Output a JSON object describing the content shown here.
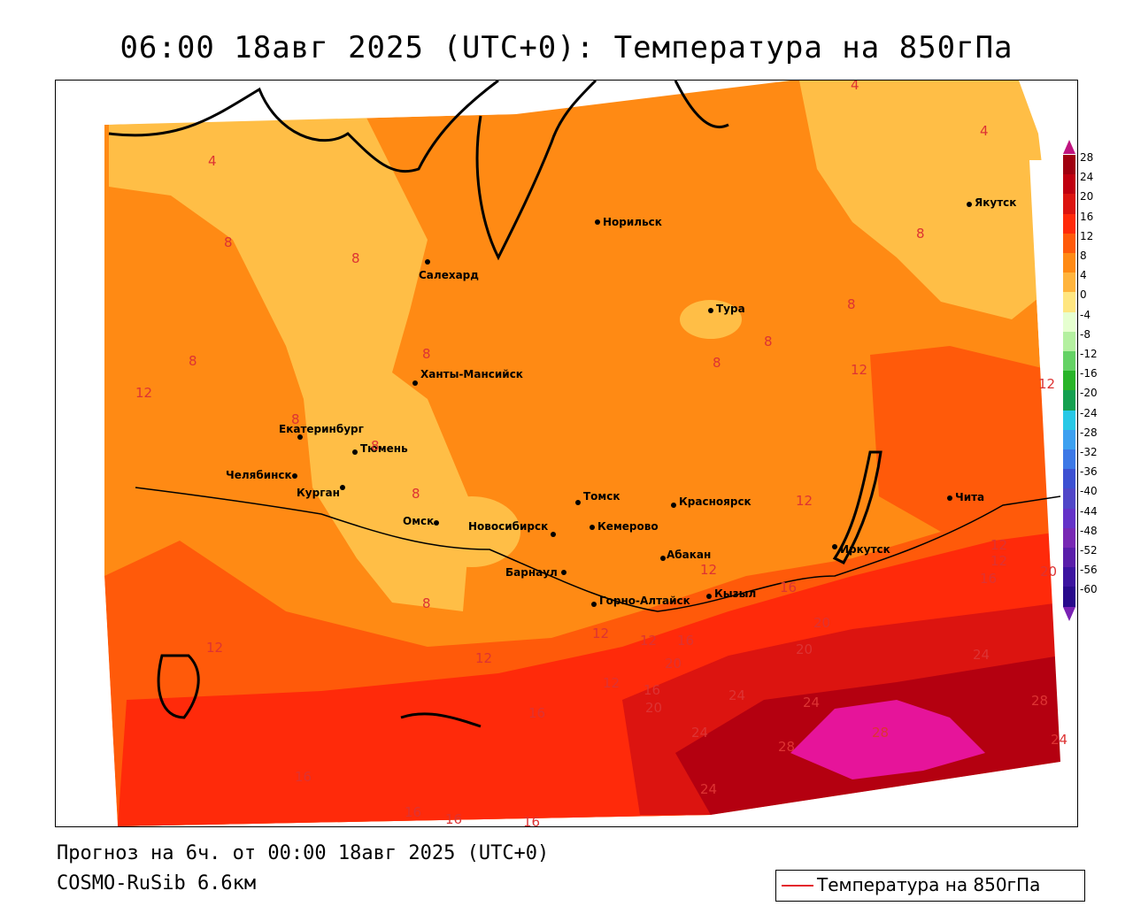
{
  "header": {
    "title": "06:00 18авг 2025 (UTC+0): Температура на 850гПа"
  },
  "footer": {
    "forecast": "Прогноз на 6ч. от 00:00 18авг 2025 (UTC+0)",
    "model": "COSMO-RuSib 6.6км"
  },
  "legend": {
    "line_label": "Температура на 850гПа",
    "line_color": "#e3262c"
  },
  "colorbar": {
    "labels": [
      "28",
      "24",
      "20",
      "16",
      "12",
      "8",
      "4",
      "0",
      "-4",
      "-8",
      "-12",
      "-16",
      "-20",
      "-24",
      "-28",
      "-32",
      "-36",
      "-40",
      "-44",
      "-48",
      "-52",
      "-56",
      "-60"
    ],
    "colors": [
      "#a00010",
      "#c00010",
      "#dc1410",
      "#ff2a0a",
      "#ff5a0a",
      "#ff8a14",
      "#ffb43c",
      "#ffe680",
      "#e6ffd0",
      "#b4f0a0",
      "#64d264",
      "#28b428",
      "#14a050",
      "#28c8e6",
      "#3ca0f0",
      "#3c78e6",
      "#3c50d2",
      "#5046c8",
      "#6432c8",
      "#7828b4",
      "#5a1eaa",
      "#3c14a0",
      "#280a8c"
    ]
  },
  "map": {
    "cities": [
      {
        "name": "Норильск"
      },
      {
        "name": "Салехард"
      },
      {
        "name": "Тура"
      },
      {
        "name": "Якутск"
      },
      {
        "name": "Ханты-Мансийск"
      },
      {
        "name": "Екатеринбург"
      },
      {
        "name": "Тюмень"
      },
      {
        "name": "Челябинск"
      },
      {
        "name": "Курган"
      },
      {
        "name": "Омск"
      },
      {
        "name": "Новосибирск"
      },
      {
        "name": "Томск"
      },
      {
        "name": "Кемерово"
      },
      {
        "name": "Красноярск"
      },
      {
        "name": "Барнаул"
      },
      {
        "name": "Абакан"
      },
      {
        "name": "Горно-Алтайск"
      },
      {
        "name": "Кызыл"
      },
      {
        "name": "Иркутск"
      },
      {
        "name": "Чита"
      }
    ],
    "isotherm_labels": [
      "4",
      "4",
      "4",
      "8",
      "8",
      "8",
      "8",
      "8",
      "8",
      "8",
      "8",
      "8",
      "8",
      "8",
      "8",
      "12",
      "12",
      "12",
      "12",
      "12",
      "12",
      "12",
      "12",
      "12",
      "12",
      "12",
      "12",
      "16",
      "16",
      "16",
      "16",
      "16",
      "16",
      "16",
      "16",
      "20",
      "20",
      "20",
      "20",
      "20",
      "24",
      "24",
      "24",
      "24",
      "24",
      "28",
      "28",
      "28",
      "24",
      "16"
    ]
  }
}
